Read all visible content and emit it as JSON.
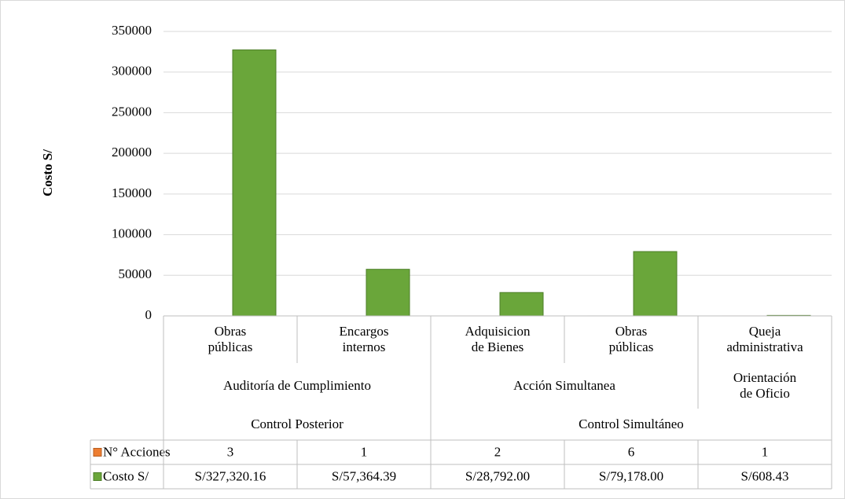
{
  "chart_data": {
    "type": "bar",
    "y_label": "Costo S/",
    "categories": [
      "Obras públicas",
      "Encargos internos",
      "Adquisicion de Bienes",
      "Obras públicas",
      "Queja administrativa"
    ],
    "category_levels": [
      [
        "Auditoría de Cumplimiento",
        "Auditoría de Cumplimiento",
        "Acción Simultanea",
        "Acción Simultanea",
        "Orientación de Oficio"
      ],
      [
        "Control Posterior",
        "Control Posterior",
        "Control Simultáneo",
        "Control Simultáneo",
        "Control Simultáneo"
      ]
    ],
    "series": [
      {
        "name": "N° Acciones",
        "color": "#ed7d31",
        "values": [
          3,
          1,
          2,
          6,
          1
        ]
      },
      {
        "name": "Costo S/",
        "color": "#6aa63a",
        "values": [
          327320.16,
          57364.39,
          28792.0,
          79178.0,
          608.43
        ],
        "value_labels": [
          "S/327,320.16",
          "S/57,364.39",
          "S/28,792.00",
          "S/79,178.00",
          "S/608.43"
        ]
      }
    ],
    "ylim": [
      0,
      350000
    ],
    "yticks": [
      0,
      50000,
      100000,
      150000,
      200000,
      250000,
      300000,
      350000
    ],
    "grid": true,
    "data_table": true
  }
}
